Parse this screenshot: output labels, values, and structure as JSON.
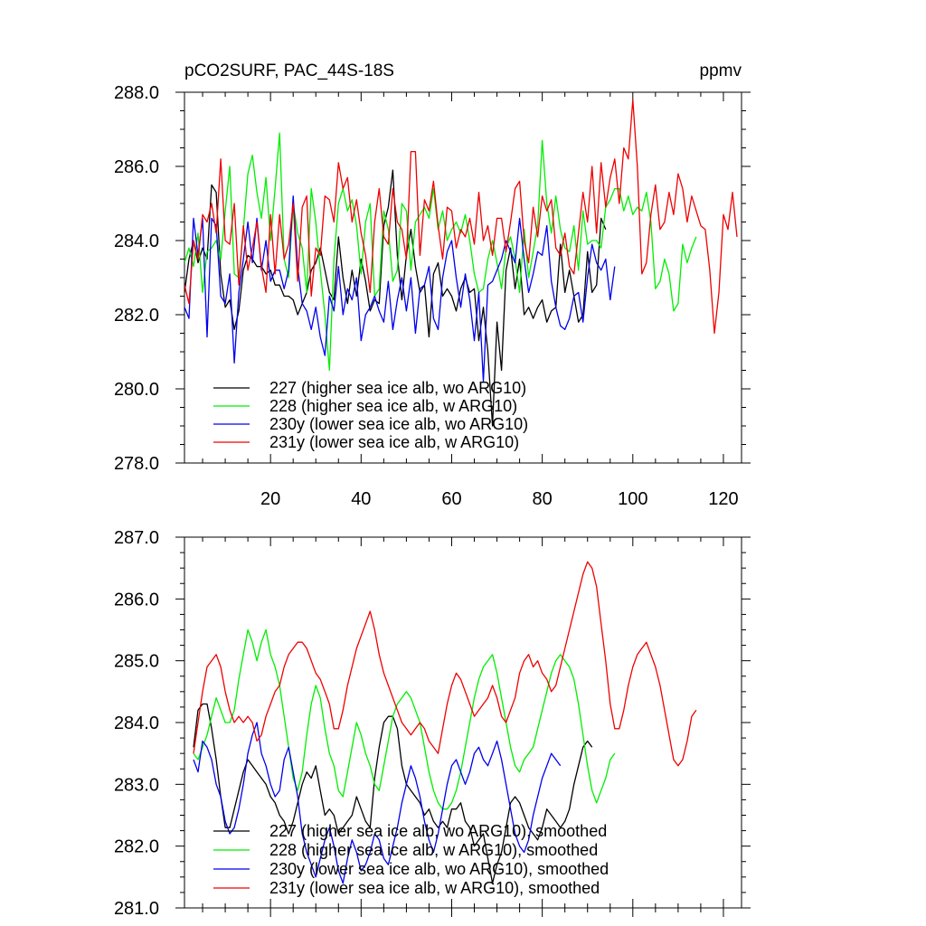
{
  "chart_data": [
    {
      "type": "line",
      "title": "pCO2SURF, PAC_44S-18S",
      "units": "ppmv",
      "xlim": [
        1,
        124
      ],
      "ylim": [
        278,
        288
      ],
      "xticks": [
        20,
        40,
        60,
        80,
        100,
        120
      ],
      "yticks": [
        278,
        280,
        282,
        284,
        286,
        288
      ],
      "ytick_labels": [
        "278.0",
        "280.0",
        "282.0",
        "284.0",
        "286.0",
        "288.0"
      ],
      "legend_position": "bottom-left",
      "series": [
        {
          "name": "227 (higher sea ice alb, wo ARG10)",
          "color": "#000000",
          "x_start": 1,
          "values": [
            282.6,
            283.5,
            284.0,
            283.4,
            283.8,
            283.5,
            285.5,
            285.3,
            283.1,
            282.2,
            282.4,
            281.6,
            282.1,
            283.2,
            283.6,
            283.5,
            283.3,
            283.3,
            283.1,
            283.2,
            282.8,
            282.8,
            282.5,
            282.5,
            282.4,
            282.0,
            282.3,
            282.6,
            283.2,
            283.4,
            283.8,
            283.2,
            282.6,
            282.4,
            284.1,
            283.0,
            282.3,
            283.2,
            282.5,
            283.5,
            282.9,
            282.1,
            282.4,
            282.3,
            284.4,
            284.9,
            285.9,
            283.6,
            282.4,
            283.6,
            284.3,
            283.3,
            282.6,
            282.8,
            281.4,
            283.1,
            283.4,
            282.5,
            282.7,
            282.5,
            282.1,
            282.7,
            283.0,
            282.6,
            282.7,
            281.3,
            282.2,
            281.0,
            279.0,
            281.8,
            280.5,
            283.2,
            283.8,
            282.7,
            283.5,
            282.0,
            282.2,
            281.9,
            282.2,
            282.4,
            281.8,
            282.1,
            282.2,
            283.9,
            282.6,
            283.2,
            282.5,
            281.8,
            282.0,
            283.7,
            282.6,
            282.8,
            284.6,
            284.3
          ]
        },
        {
          "name": "228 (higher sea ice alb, w ARG10)",
          "color": "#00ee00",
          "x_start": 1,
          "values": [
            283.4,
            283.8,
            283.3,
            284.2,
            282.6,
            283.7,
            283.8,
            284.0,
            283.5,
            284.8,
            286.0,
            283.1,
            283.0,
            284.3,
            285.8,
            286.3,
            285.3,
            284.6,
            285.7,
            284.0,
            285.4,
            286.9,
            283.5,
            283.0,
            285.0,
            284.2,
            283.8,
            282.6,
            285.4,
            284.5,
            283.2,
            282.0,
            280.5,
            283.5,
            285.0,
            285.4,
            284.8,
            285.1,
            284.4,
            283.1,
            284.5,
            285.0,
            282.5,
            282.7,
            284.8,
            284.3,
            282.9,
            283.2,
            285.0,
            284.8,
            283.2,
            284.5,
            284.7,
            284.9,
            284.6,
            285.4,
            284.3,
            284.8,
            284.0,
            284.3,
            284.5,
            284.2,
            284.7,
            284.0,
            283.1,
            282.6,
            282.7,
            283.5,
            284.0,
            283.4,
            282.7,
            283.8,
            284.1,
            283.5,
            282.6,
            284.3,
            283.0,
            283.7,
            284.4,
            286.7,
            285.0,
            284.2,
            285.2,
            284.3,
            283.8,
            283.7,
            284.4,
            283.2,
            284.8,
            283.9,
            284.0,
            284.0,
            283.8,
            284.9,
            285.1,
            285.4,
            285.4,
            284.8,
            285.2,
            284.7,
            284.9,
            284.8,
            285.3,
            284.5,
            282.7,
            282.9,
            283.5,
            283.1,
            282.1,
            282.3,
            283.9,
            283.4,
            283.8,
            284.1
          ]
        },
        {
          "name": "230y (lower sea ice alb, wo ARG10)",
          "color": "#0000ee",
          "x_start": 1,
          "values": [
            282.2,
            281.9,
            284.6,
            283.6,
            284.6,
            281.4,
            284.6,
            284.4,
            282.5,
            282.3,
            283.1,
            280.7,
            282.6,
            283.5,
            284.5,
            283.4,
            284.6,
            283.2,
            284.0,
            282.9,
            283.2,
            283.2,
            282.7,
            283.2,
            285.2,
            283.3,
            282.3,
            282.1,
            281.6,
            282.2,
            281.4,
            280.9,
            282.5,
            282.1,
            283.3,
            282.0,
            282.7,
            282.4,
            283.0,
            281.3,
            282.0,
            282.2,
            282.5,
            282.1,
            281.8,
            282.9,
            281.6,
            282.4,
            283.0,
            282.1,
            283.0,
            281.5,
            282.7,
            282.8,
            283.3,
            281.9,
            281.6,
            283.0,
            283.7,
            284.0,
            283.0,
            282.2,
            283.1,
            282.4,
            281.3,
            282.6,
            280.2,
            282.8,
            282.9,
            283.2,
            283.5,
            284.0,
            283.7,
            283.4,
            284.6,
            283.5,
            282.6,
            283.1,
            283.7,
            283.6,
            284.4,
            282.9,
            282.2,
            281.7,
            281.6,
            281.9,
            282.5,
            282.6,
            281.8,
            283.0,
            283.9,
            283.4,
            283.2,
            283.5,
            282.4,
            283.3
          ]
        },
        {
          "name": "231y (lower sea ice alb, w ARG10)",
          "color": "#ee0000",
          "x_start": 1,
          "values": [
            282.8,
            282.3,
            284.0,
            283.5,
            284.7,
            284.5,
            285.0,
            284.2,
            286.2,
            284.0,
            283.9,
            285.0,
            282.8,
            284.4,
            283.2,
            283.8,
            284.5,
            283.3,
            282.6,
            284.7,
            283.1,
            284.7,
            283.5,
            283.9,
            285.0,
            282.9,
            284.9,
            285.2,
            282.5,
            283.8,
            283.6,
            285.2,
            285.1,
            284.5,
            286.1,
            285.4,
            285.7,
            284.5,
            285.1,
            284.2,
            283.6,
            282.6,
            284.5,
            285.4,
            284.1,
            283.9,
            285.4,
            284.5,
            284.3,
            283.5,
            286.4,
            286.4,
            283.6,
            285.1,
            284.8,
            285.6,
            284.4,
            283.5,
            284.9,
            284.8,
            283.8,
            284.3,
            284.1,
            284.6,
            283.9,
            285.3,
            284.0,
            284.4,
            283.6,
            284.6,
            284.6,
            283.7,
            284.5,
            285.4,
            285.6,
            284.0,
            283.4,
            284.9,
            284.1,
            285.2,
            284.8,
            285.1,
            283.8,
            283.6,
            284.2,
            283.3,
            283.1,
            284.2,
            285.3,
            284.5,
            286.0,
            284.2,
            286.1,
            284.9,
            285.7,
            286.2,
            285.0,
            286.5,
            286.2,
            287.8,
            286.0,
            283.1,
            283.4,
            284.7,
            285.5,
            284.3,
            284.5,
            285.3,
            284.7,
            285.8,
            285.4,
            284.5,
            285.2,
            284.8,
            284.4,
            284.3,
            283.2,
            281.5,
            282.6,
            284.7,
            284.3,
            285.3,
            284.1
          ]
        }
      ]
    },
    {
      "type": "line",
      "title": "",
      "units": "",
      "xlim": [
        1,
        124
      ],
      "ylim": [
        281,
        287
      ],
      "xticks": [
        20,
        40,
        60,
        80,
        100,
        120
      ],
      "yticks": [
        281,
        282,
        283,
        284,
        285,
        286,
        287
      ],
      "ytick_labels": [
        "281.0",
        "282.0",
        "283.0",
        "284.0",
        "285.0",
        "286.0",
        "287.0"
      ],
      "legend_position": "bottom-left",
      "series": [
        {
          "name": "227 (higher sea ice alb, wo ARG10), smoothed",
          "color": "#000000",
          "x_start": 3,
          "values": [
            283.6,
            284.2,
            284.3,
            284.3,
            283.9,
            283.4,
            282.8,
            282.3,
            282.3,
            282.6,
            282.9,
            283.2,
            283.4,
            283.3,
            283.2,
            283.1,
            283.0,
            282.8,
            282.7,
            282.5,
            282.4,
            282.2,
            282.4,
            282.7,
            283.0,
            283.2,
            283.1,
            283.3,
            282.9,
            282.5,
            282.6,
            282.5,
            282.2,
            282.3,
            282.4,
            282.5,
            282.8,
            282.6,
            282.4,
            282.3,
            283.1,
            283.6,
            284.0,
            284.1,
            284.1,
            283.9,
            283.3,
            283.0,
            282.9,
            282.8,
            282.7,
            282.5,
            282.6,
            282.4,
            282.3,
            282.4,
            282.3,
            282.6,
            282.6,
            282.7,
            282.4,
            282.3,
            282.0,
            282.1,
            282.2,
            281.8,
            281.4,
            281.7,
            281.9,
            282.3,
            282.7,
            282.8,
            282.7,
            282.5,
            282.3,
            282.2,
            282.1,
            282.3,
            282.6,
            282.5,
            282.4,
            282.3,
            282.4,
            282.6,
            283.0,
            283.3,
            283.6,
            283.7,
            283.6
          ]
        },
        {
          "name": "228 (higher sea ice alb, w ARG10), smoothed",
          "color": "#00ee00",
          "x_start": 3,
          "values": [
            283.5,
            283.4,
            283.6,
            283.8,
            284.1,
            284.4,
            284.2,
            284.0,
            284.0,
            284.2,
            284.7,
            285.1,
            285.5,
            285.3,
            285.0,
            285.3,
            285.5,
            285.1,
            284.9,
            284.6,
            284.1,
            283.6,
            283.1,
            282.9,
            283.2,
            283.8,
            284.3,
            284.6,
            284.4,
            283.9,
            283.5,
            283.3,
            282.9,
            282.8,
            283.2,
            283.6,
            284.0,
            283.8,
            283.5,
            283.3,
            283.0,
            282.9,
            283.3,
            283.7,
            284.1,
            284.3,
            284.4,
            284.5,
            284.4,
            284.2,
            284.0,
            283.6,
            283.2,
            282.9,
            282.7,
            282.6,
            282.6,
            282.7,
            282.9,
            283.2,
            283.6,
            284.0,
            284.4,
            284.7,
            284.9,
            285.0,
            285.1,
            284.8,
            284.4,
            284.0,
            283.6,
            283.3,
            283.2,
            283.4,
            283.5,
            283.6,
            283.9,
            284.2,
            284.5,
            284.8,
            285.0,
            285.1,
            285.0,
            284.9,
            284.7,
            284.3,
            283.8,
            283.3,
            282.9,
            282.7,
            282.9,
            283.1,
            283.4,
            283.5
          ]
        },
        {
          "name": "230y (lower sea ice alb, wo ARG10), smoothed",
          "color": "#0000ee",
          "x_start": 3,
          "values": [
            283.4,
            283.2,
            283.7,
            283.6,
            283.4,
            283.0,
            282.8,
            282.4,
            282.2,
            282.3,
            282.6,
            283.0,
            283.5,
            283.8,
            284.0,
            283.5,
            283.3,
            283.0,
            282.8,
            282.9,
            283.4,
            283.6,
            283.2,
            282.8,
            282.2,
            281.9,
            281.7,
            281.5,
            281.8,
            282.1,
            282.3,
            282.0,
            281.6,
            281.4,
            281.8,
            282.1,
            281.9,
            281.6,
            281.7,
            281.9,
            282.2,
            282.1,
            281.8,
            281.7,
            282.0,
            282.3,
            282.7,
            283.0,
            283.3,
            283.1,
            282.8,
            282.4,
            282.1,
            281.9,
            282.2,
            282.6,
            283.0,
            283.3,
            283.4,
            283.2,
            283.0,
            283.2,
            283.5,
            283.6,
            283.4,
            283.3,
            283.5,
            283.7,
            283.4,
            283.0,
            282.6,
            282.2,
            282.0,
            281.9,
            282.1,
            282.5,
            282.8,
            283.1,
            283.3,
            283.5,
            283.4,
            283.3
          ]
        },
        {
          "name": "231y (lower sea ice alb, w ARG10), smoothed",
          "color": "#ee0000",
          "x_start": 3,
          "values": [
            283.5,
            284.0,
            284.5,
            284.9,
            285.0,
            285.1,
            284.9,
            284.5,
            284.2,
            284.0,
            284.1,
            284.0,
            284.1,
            284.0,
            283.7,
            283.8,
            284.1,
            284.3,
            284.5,
            284.6,
            284.9,
            285.1,
            285.2,
            285.3,
            285.3,
            285.2,
            285.0,
            284.8,
            284.7,
            284.5,
            284.3,
            283.9,
            283.9,
            284.2,
            284.6,
            284.9,
            285.2,
            285.4,
            285.6,
            285.8,
            285.5,
            285.1,
            284.8,
            284.6,
            284.4,
            284.2,
            284.0,
            283.9,
            283.8,
            283.9,
            284.0,
            283.9,
            283.7,
            283.6,
            283.5,
            283.9,
            284.3,
            284.6,
            284.8,
            284.7,
            284.5,
            284.3,
            284.1,
            284.2,
            284.3,
            284.4,
            284.6,
            284.4,
            284.1,
            284.0,
            284.2,
            284.4,
            284.8,
            285.0,
            285.1,
            284.9,
            285.0,
            284.8,
            284.7,
            284.5,
            284.6,
            284.9,
            285.2,
            285.5,
            285.8,
            286.1,
            286.4,
            286.6,
            286.5,
            286.2,
            285.6,
            285.0,
            284.3,
            283.9,
            283.9,
            284.2,
            284.6,
            284.9,
            285.1,
            285.2,
            285.3,
            285.1,
            284.9,
            284.6,
            284.2,
            283.8,
            283.4,
            283.3,
            283.4,
            283.7,
            284.1,
            284.2
          ]
        }
      ]
    }
  ]
}
